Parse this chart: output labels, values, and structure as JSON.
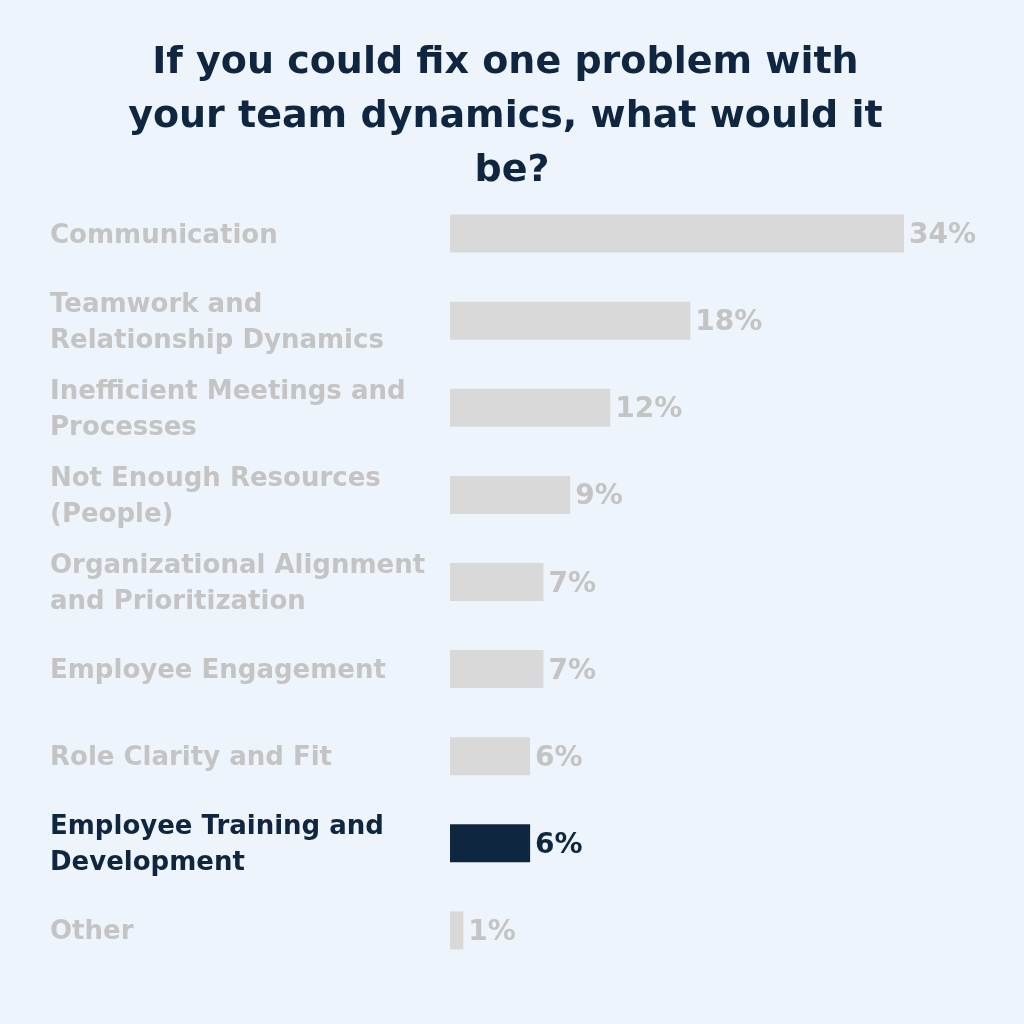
{
  "chart_data": {
    "type": "bar",
    "orientation": "horizontal",
    "title": "If you could fix one problem with your team dynamics, what would it be?",
    "categories": [
      "Communication",
      "Teamwork and Relationship Dynamics",
      "Inefficient Meetings and Processes",
      "Not Enough Resources (People)",
      "Organizational Alignment and Prioritization",
      "Employee Engagement",
      "Role Clarity and Fit",
      "Employee Training and Development",
      "Other"
    ],
    "values": [
      34,
      18,
      12,
      9,
      7,
      7,
      6,
      6,
      1
    ],
    "colors": [
      "#d9d9d9",
      "#d9d9d9",
      "#d9d9d9",
      "#d9d9d9",
      "#d9d9d9",
      "#d9d9d9",
      "#d9d9d9",
      "#0f2640",
      "#d9d9d9"
    ],
    "value_labels": [
      "34%",
      "18%",
      "12%",
      "9%",
      "7%",
      "7%",
      "6%",
      "6%",
      "1%"
    ],
    "grid": false,
    "legend": false
  }
}
